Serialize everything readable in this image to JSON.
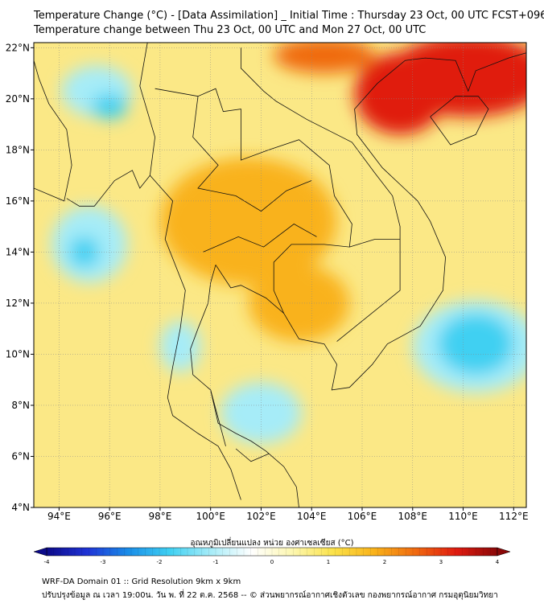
{
  "title": "Temperature Change (°C) - [Data Assimilation] _ Initial Time : Thursday 23 Oct, 00 UTC FCST+096",
  "subtitle": "Temperature change between Thu 23 Oct, 00 UTC and Mon 27 Oct, 00 UTC",
  "axes": {
    "lon_ticks": [
      "94°E",
      "96°E",
      "98°E",
      "100°E",
      "102°E",
      "104°E",
      "106°E",
      "108°E",
      "110°E",
      "112°E"
    ],
    "lat_ticks": [
      "4°N",
      "6°N",
      "8°N",
      "10°N",
      "12°N",
      "14°N",
      "16°N",
      "18°N",
      "20°N",
      "22°N"
    ],
    "lon_range": [
      93,
      112.5
    ],
    "lat_range": [
      4,
      22.2
    ]
  },
  "colorbar": {
    "label": "อุณหภูมิเปลี่ยนแปลง หน่วย องศาเซลเซียส (°C)",
    "ticks": [
      "-4",
      "-3",
      "-2",
      "-1",
      "0",
      "1",
      "2",
      "3",
      "4"
    ],
    "range": [
      -4,
      4
    ],
    "colors": [
      "#0c0a8a",
      "#1f34d6",
      "#1a8ee8",
      "#3fd0f2",
      "#a6ecf8",
      "#ffffff",
      "#fdf7b0",
      "#fbe24a",
      "#f9b21a",
      "#f06a10",
      "#e01b10",
      "#8a0808"
    ]
  },
  "footer": {
    "line1": "WRF-DA Domain 01 :: Grid Resolution 9km x 9km",
    "line2": "ปรับปรุงข้อมูล ณ เวลา 19:00น. วัน พ. ที่ 22 ต.ค. 2568 -- © ส่วนพยากรณ์อากาศเชิงตัวเลข กองพยากรณ์อากาศ กรมอุตุนิยมวิทยา"
  },
  "field": {
    "background": "#fbe886",
    "features": [
      {
        "lon": 110.2,
        "lat": 20.9,
        "rx": 3.2,
        "ry": 1.6,
        "color": "#e01b10"
      },
      {
        "lon": 107.5,
        "lat": 20.2,
        "rx": 1.8,
        "ry": 1.6,
        "color": "#e01b10"
      },
      {
        "lon": 104.5,
        "lat": 21.7,
        "rx": 2.0,
        "ry": 0.7,
        "color": "#f06a10"
      },
      {
        "lon": 99.5,
        "lat": 14.7,
        "rx": 0.9,
        "ry": 0.8,
        "color": "#f06a10"
      },
      {
        "lon": 103.9,
        "lat": 15.3,
        "rx": 1.1,
        "ry": 0.9,
        "color": "#f06a10"
      },
      {
        "lon": 101.5,
        "lat": 15.2,
        "rx": 3.5,
        "ry": 2.5,
        "color": "#f9b21a"
      },
      {
        "lon": 103.5,
        "lat": 12.0,
        "rx": 2.0,
        "ry": 1.5,
        "color": "#f9b21a"
      },
      {
        "lon": 95.5,
        "lat": 20.3,
        "rx": 1.4,
        "ry": 1.0,
        "color": "#a6ecf8"
      },
      {
        "lon": 95.2,
        "lat": 14.3,
        "rx": 1.5,
        "ry": 1.5,
        "color": "#a6ecf8"
      },
      {
        "lon": 110.5,
        "lat": 10.3,
        "rx": 2.5,
        "ry": 1.8,
        "color": "#a6ecf8"
      },
      {
        "lon": 102.0,
        "lat": 7.7,
        "rx": 1.6,
        "ry": 1.2,
        "color": "#a6ecf8"
      },
      {
        "lon": 98.8,
        "lat": 10.3,
        "rx": 0.8,
        "ry": 1.0,
        "color": "#a6ecf8"
      },
      {
        "lon": 96.0,
        "lat": 19.7,
        "rx": 0.7,
        "ry": 0.5,
        "color": "#3fd0f2"
      },
      {
        "lon": 110.5,
        "lat": 10.4,
        "rx": 1.5,
        "ry": 1.2,
        "color": "#3fd0f2"
      },
      {
        "lon": 95.0,
        "lat": 14.0,
        "rx": 0.6,
        "ry": 0.6,
        "color": "#3fd0f2"
      }
    ]
  }
}
